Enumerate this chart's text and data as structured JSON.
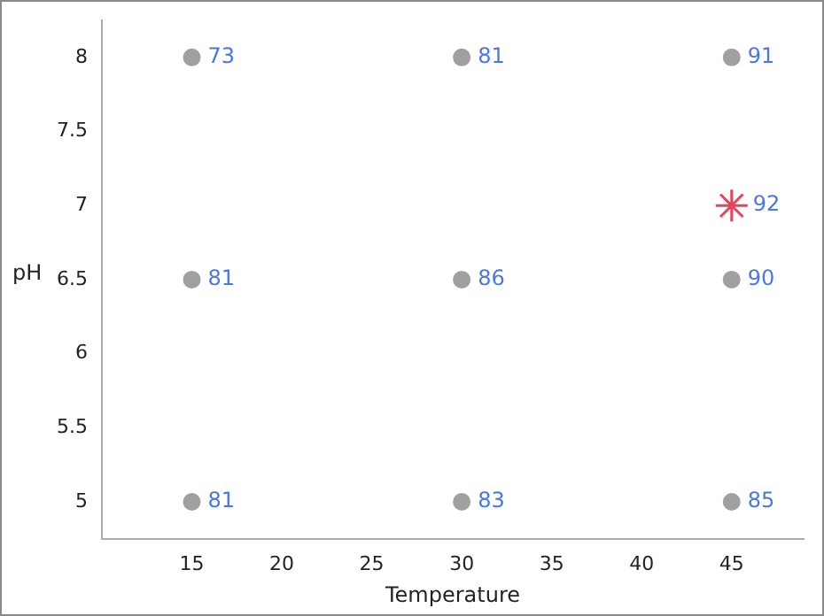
{
  "chart_data": {
    "type": "scatter",
    "xlabel": "Temperature",
    "ylabel": "pH",
    "xlim": [
      10,
      49
    ],
    "xticks": [
      15,
      20,
      25,
      30,
      35,
      40,
      45
    ],
    "ylim": [
      4.75,
      8.25
    ],
    "yticks": [
      5,
      5.5,
      6,
      6.5,
      7,
      7.5,
      8
    ],
    "grid": false,
    "legend": false,
    "series": [
      {
        "color": "#a0a0a0",
        "marker": "circle",
        "x": [
          15,
          30,
          45,
          15,
          30,
          45,
          15,
          30,
          45
        ],
        "values": [
          8,
          8,
          8,
          6.5,
          6.5,
          6.5,
          5,
          5,
          5
        ]
      },
      {
        "color": "#e8435a",
        "marker": "cross",
        "x": [
          45
        ],
        "values": [
          7
        ]
      }
    ],
    "annotations": [
      {
        "text": "73",
        "x": 15,
        "y": 8
      },
      {
        "text": "81",
        "x": 30,
        "y": 8
      },
      {
        "text": "91",
        "x": 45,
        "y": 8
      },
      {
        "text": "92",
        "x": 45,
        "y": 7
      },
      {
        "text": "81",
        "x": 15,
        "y": 6.5
      },
      {
        "text": "86",
        "x": 30,
        "y": 6.5
      },
      {
        "text": "90",
        "x": 45,
        "y": 6.5
      },
      {
        "text": "81",
        "x": 15,
        "y": 5
      },
      {
        "text": "83",
        "x": 30,
        "y": 5
      },
      {
        "text": "85",
        "x": 45,
        "y": 5
      }
    ]
  }
}
